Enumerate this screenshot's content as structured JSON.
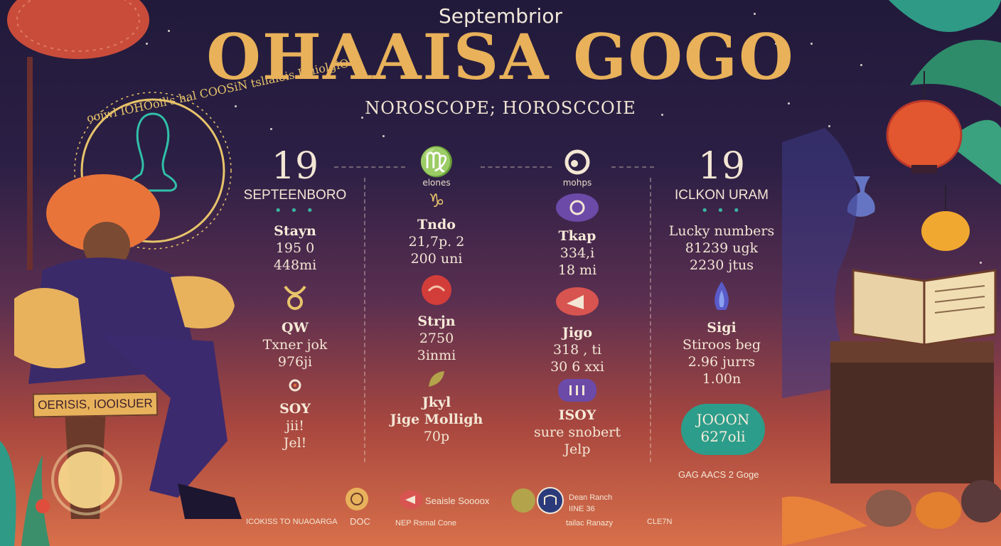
{
  "header": {
    "supertitle": "Septembrior",
    "title": "OHAAISA GOGO",
    "subtitle": "NOROSCOPE; HOROSCCOIE"
  },
  "left_banner": "OERISIS, IOOISUER",
  "halo_text": "ooiwl IOHOoil's hal COOSiN tsliaiois IOiiolgiO",
  "columns": [
    {
      "big": "19",
      "sub": "SEPTEENBORO",
      "groups": [
        {
          "heading": "Stayn",
          "lines": [
            "195 0",
            "448mi"
          ]
        },
        {
          "heading": "QW",
          "lines": [
            "Txner jok",
            "976ji"
          ]
        },
        {
          "heading": "SOY",
          "lines": [
            "jii!",
            "Jel!"
          ]
        }
      ]
    },
    {
      "sub": "elones",
      "groups": [
        {
          "heading": "Tndo",
          "lines": [
            "21,7p. 2",
            "200 uni"
          ]
        },
        {
          "heading": "Strjn",
          "lines": [
            "2750",
            "3inmi"
          ]
        },
        {
          "heading": "Jkyl",
          "lines": [
            "Jige Molligh",
            "70p"
          ]
        }
      ]
    },
    {
      "sub": "mohps",
      "groups": [
        {
          "heading": "Tkap",
          "lines": [
            "334,i",
            "18 mi"
          ]
        },
        {
          "heading": "Jigo",
          "lines": [
            "318 , ti",
            "30 6 xxi"
          ]
        },
        {
          "heading": "ISOY",
          "lines": [
            "sure snobert",
            "Jelp"
          ]
        }
      ]
    },
    {
      "big": "19",
      "sub": "ICLKON URAM",
      "groups": [
        {
          "heading": "Lucky numbers",
          "lines": [
            "81239 ugk",
            "2230 jtus"
          ]
        },
        {
          "heading": "Sigi",
          "lines": [
            "Stiroos beg",
            "2.96 jurrs",
            "1.00n"
          ]
        }
      ]
    }
  ],
  "bubble": {
    "line1": "JOOON",
    "line2": "627oli"
  },
  "right_caption": "GAG AACS 2 Goge",
  "footer": {
    "col1": "ICOKISS TO NUAOARGA",
    "col1b": "DOC",
    "col2a": "Seaisle Soooox",
    "col2b": "NEP Rsmal Cone",
    "col3a": "Dean Ranch",
    "col3b": "IINE 36",
    "col3c": "tailac Ranazy",
    "col4": "CLE7N"
  },
  "colors": {
    "accent_gold": "#e8b15a",
    "teal": "#2c9d8a",
    "bg_top": "#211a3a",
    "bg_bottom": "#d8704a"
  }
}
